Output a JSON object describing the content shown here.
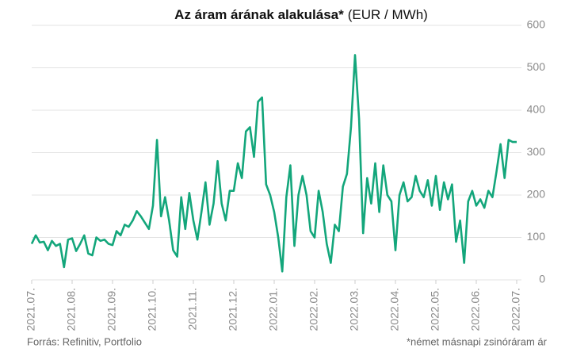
{
  "chart_data": {
    "type": "line",
    "title": "Az áram árának alakulása*",
    "unit_label": "(EUR / MWh)",
    "source": "Forrás: Refinitiv, Portfolio",
    "footnote": "*német másnapi zsinóráram ár",
    "categories": [
      "2021.07.",
      null,
      null,
      null,
      null,
      null,
      null,
      null,
      null,
      null,
      "2021.08.",
      null,
      null,
      null,
      null,
      null,
      null,
      null,
      null,
      null,
      "2021.09.",
      null,
      null,
      null,
      null,
      null,
      null,
      null,
      null,
      null,
      "2021.10.",
      null,
      null,
      null,
      null,
      null,
      null,
      null,
      null,
      null,
      "2021.11.",
      null,
      null,
      null,
      null,
      null,
      null,
      null,
      null,
      null,
      "2021.12.",
      null,
      null,
      null,
      null,
      null,
      null,
      null,
      null,
      null,
      "2022.01.",
      null,
      null,
      null,
      null,
      null,
      null,
      null,
      null,
      null,
      "2022.02.",
      null,
      null,
      null,
      null,
      null,
      null,
      null,
      null,
      null,
      "2022.03.",
      null,
      null,
      null,
      null,
      null,
      null,
      null,
      null,
      null,
      "2022.04.",
      null,
      null,
      null,
      null,
      null,
      null,
      null,
      null,
      null,
      "2022.05.",
      null,
      null,
      null,
      null,
      null,
      null,
      null,
      null,
      null,
      "2022.06.",
      null,
      null,
      null,
      null,
      null,
      null,
      null,
      null,
      null,
      "2022.07."
    ],
    "series": [
      {
        "name": "Áramár",
        "color": "#13a67b",
        "values": [
          85,
          105,
          88,
          90,
          70,
          92,
          80,
          85,
          30,
          95,
          98,
          68,
          85,
          105,
          62,
          58,
          100,
          92,
          95,
          85,
          82,
          115,
          105,
          130,
          125,
          140,
          162,
          150,
          135,
          120,
          175,
          330,
          150,
          195,
          140,
          70,
          55,
          195,
          120,
          205,
          140,
          95,
          160,
          230,
          130,
          180,
          280,
          180,
          140,
          210,
          210,
          275,
          240,
          350,
          360,
          290,
          420,
          430,
          225,
          200,
          160,
          100,
          20,
          195,
          270,
          80,
          200,
          245,
          200,
          115,
          100,
          210,
          160,
          85,
          40,
          130,
          115,
          220,
          250,
          360,
          530,
          380,
          110,
          240,
          180,
          275,
          160,
          270,
          200,
          185,
          70,
          200,
          230,
          185,
          195,
          245,
          210,
          195,
          235,
          175,
          245,
          165,
          230,
          190,
          225,
          90,
          140,
          40,
          185,
          210,
          175,
          190,
          170,
          210,
          195,
          255,
          320,
          240,
          330,
          325,
          325
        ]
      }
    ],
    "ylim": [
      0,
      600
    ],
    "yticks": [
      0,
      100,
      200,
      300,
      400,
      500,
      600
    ],
    "grid": true
  }
}
